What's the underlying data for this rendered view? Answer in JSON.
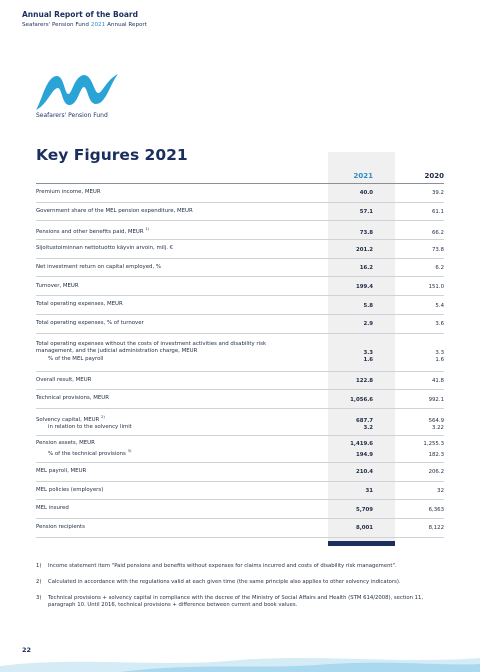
{
  "header": {
    "title": "Annual Report of the Board",
    "subtitle": {
      "before": "Seafarers' Pension Fund",
      "year": "2021",
      "after": "Annual Report"
    }
  },
  "logo": {
    "text": "Seafarers' Pension Fund"
  },
  "title": "Key Figures 2021",
  "table": {
    "columns": [
      "2021",
      "2020"
    ],
    "rows": [
      {
        "label": "Premium income, MEUR",
        "v2021": "40.0",
        "v2020": "39.2"
      },
      {
        "label": "Government share of the MEL pension expenditure, MEUR",
        "v2021": "57.1",
        "v2020": "61.1"
      },
      {
        "label": "Pensions and other benefits paid, MEUR",
        "sup": "1)",
        "v2021": "73.8",
        "v2020": "66.2"
      },
      {
        "label": "Sijoitustoiminnan nettotuotto käyvin arvoin, milj. €",
        "v2021": "201.2",
        "v2020": "73.8"
      },
      {
        "label": "Net investment return on capital employed, %",
        "v2021": "16.2",
        "v2020": "6.2"
      },
      {
        "label": "Turnover, MEUR",
        "v2021": "199.4",
        "v2020": "151.0"
      },
      {
        "label": "Total operating expenses, MEUR",
        "v2021": "5.8",
        "v2020": "5.4"
      },
      {
        "label": "Total operating expenses, % of turnover",
        "v2021": "2.9",
        "v2020": "3.6"
      },
      {
        "label": "Total operating expenses without the costs of investment activities and disability risk management, and the judicial administration charge, MEUR",
        "v2021": "3.3",
        "v2020": "3.3",
        "sub": {
          "label": "% of the MEL payroll",
          "v2021": "1.6",
          "v2020": "1.6"
        }
      },
      {
        "label": "Overall result, MEUR",
        "v2021": "122.8",
        "v2020": "41.8"
      },
      {
        "label": "Technical provisions, MEUR",
        "v2021": "1,056.6",
        "v2020": "992.1"
      },
      {
        "label": "Solvency capital, MEUR",
        "sup": "2)",
        "v2021": "687.7",
        "v2020": "564.9",
        "sub": {
          "label": "in relation to the solvency limit",
          "v2021": "3.2",
          "v2020": "3.22"
        }
      },
      {
        "label": "Pension assets, MEUR",
        "v2021": "1,419.6",
        "v2020": "1,255.3",
        "sub": {
          "label": "% of the technical provisions",
          "sup": "3)",
          "v2021": "194.9",
          "v2020": "182.3"
        }
      },
      {
        "label": "MEL payroll, MEUR",
        "v2021": "210.4",
        "v2020": "206.2"
      },
      {
        "label": "MEL policies (employers)",
        "v2021": "31",
        "v2020": "32"
      },
      {
        "label": "MEL insured",
        "v2021": "5,709",
        "v2020": "6,363"
      },
      {
        "label": "Pension recipients",
        "v2021": "8,001",
        "v2020": "8,122"
      }
    ]
  },
  "footnotes": [
    {
      "number": "1)",
      "text": "Income statement item \"Paid pensions and benefits without expenses for claims incurred and costs of disability risk management\"."
    },
    {
      "number": "2)",
      "text": "Calculated in accordance with the regulations valid at each given time (the same principle also applies to other solvency indicators)."
    },
    {
      "number": "3)",
      "text": "Technical provisions + solvency capital in compliance with the decree of the Ministry of Social Affairs and Health (STM 614/2008), section 11, paragraph 10. Until 2016, technical provisions + difference between current and book values."
    }
  ],
  "page_number": "22"
}
